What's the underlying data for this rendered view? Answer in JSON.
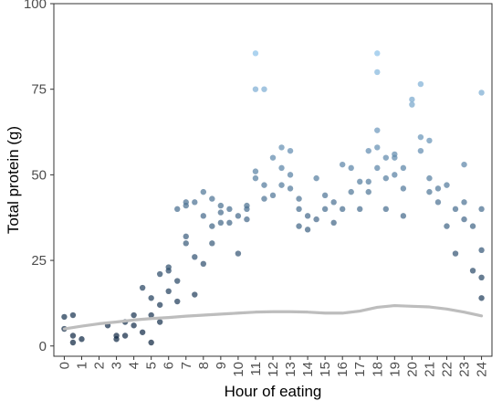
{
  "chart_data": {
    "type": "scatter",
    "title": "",
    "xlabel": "Hour of eating",
    "ylabel": "Total protein (g)",
    "xlim": [
      -0.6,
      24.6
    ],
    "ylim": [
      -3,
      100
    ],
    "x_ticks": [
      0,
      1,
      2,
      3,
      4,
      5,
      6,
      7,
      8,
      9,
      10,
      11,
      12,
      13,
      14,
      15,
      16,
      17,
      18,
      19,
      20,
      21,
      22,
      23,
      24
    ],
    "x_tick_labels": [
      "0",
      "1",
      "2",
      "3",
      "4",
      "5",
      "6",
      "7",
      "8",
      "9",
      "10",
      "11",
      "12",
      "13",
      "14",
      "15",
      "16",
      "17",
      "18",
      "19",
      "20",
      "21",
      "22",
      "23",
      "24"
    ],
    "y_ticks": [
      0,
      25,
      50,
      75,
      100
    ],
    "y_tick_labels": [
      "0",
      "25",
      "50",
      "75",
      "100"
    ],
    "grid": false,
    "point_color_scale": {
      "low": "#0e2641",
      "high": "#8fc3ea",
      "domain": [
        0,
        86
      ]
    },
    "trend_color": "#bdbdbd",
    "series": [
      {
        "points": [
          [
            0,
            8.5
          ],
          [
            0,
            5
          ],
          [
            0.5,
            9
          ],
          [
            0.5,
            3
          ],
          [
            0.5,
            1
          ],
          [
            1,
            2
          ],
          [
            2.5,
            6
          ],
          [
            3,
            3
          ],
          [
            3,
            2
          ],
          [
            3.5,
            7
          ],
          [
            3.5,
            3
          ],
          [
            4,
            9
          ],
          [
            4,
            6
          ],
          [
            4.5,
            17
          ],
          [
            4.5,
            4
          ],
          [
            5,
            1
          ],
          [
            5,
            14
          ],
          [
            5,
            9
          ],
          [
            5.5,
            21
          ],
          [
            5.5,
            7
          ],
          [
            5.5,
            12
          ],
          [
            6,
            22
          ],
          [
            6,
            16
          ],
          [
            6,
            23
          ],
          [
            6.5,
            40
          ],
          [
            6.5,
            19
          ],
          [
            6.5,
            13
          ],
          [
            7,
            41
          ],
          [
            7,
            42
          ],
          [
            7,
            32
          ],
          [
            7,
            30
          ],
          [
            7.5,
            42
          ],
          [
            7.5,
            26
          ],
          [
            7.5,
            15
          ],
          [
            8,
            45
          ],
          [
            8,
            38
          ],
          [
            8,
            24
          ],
          [
            8.5,
            43
          ],
          [
            8.5,
            35
          ],
          [
            8.5,
            30
          ],
          [
            9,
            41
          ],
          [
            9,
            36
          ],
          [
            9,
            39
          ],
          [
            9.5,
            36
          ],
          [
            9.5,
            40
          ],
          [
            10,
            38
          ],
          [
            10,
            27
          ],
          [
            10.5,
            40
          ],
          [
            10.5,
            37
          ],
          [
            10.5,
            41
          ],
          [
            11,
            85.5
          ],
          [
            11,
            75
          ],
          [
            11.5,
            75
          ],
          [
            11,
            51
          ],
          [
            11,
            49
          ],
          [
            11.5,
            43
          ],
          [
            11.5,
            47
          ],
          [
            12,
            44
          ],
          [
            12,
            55
          ],
          [
            12.5,
            58
          ],
          [
            12.5,
            52
          ],
          [
            12.5,
            47
          ],
          [
            13,
            57
          ],
          [
            13,
            50
          ],
          [
            13,
            46
          ],
          [
            13.5,
            43
          ],
          [
            13.5,
            40
          ],
          [
            13.5,
            35
          ],
          [
            14,
            38
          ],
          [
            14,
            34
          ],
          [
            14.5,
            49
          ],
          [
            14.5,
            37
          ],
          [
            15,
            44
          ],
          [
            15,
            40
          ],
          [
            15.5,
            42
          ],
          [
            15.5,
            36
          ],
          [
            16,
            53
          ],
          [
            16,
            40
          ],
          [
            16.5,
            52
          ],
          [
            16.5,
            45
          ],
          [
            17,
            48
          ],
          [
            17,
            40
          ],
          [
            17.5,
            57
          ],
          [
            17.5,
            48
          ],
          [
            17.5,
            45
          ],
          [
            18,
            85.5
          ],
          [
            18,
            80
          ],
          [
            18,
            63
          ],
          [
            18,
            58
          ],
          [
            18,
            52
          ],
          [
            18.5,
            55
          ],
          [
            18.5,
            49
          ],
          [
            18.5,
            40
          ],
          [
            19,
            56
          ],
          [
            19,
            55
          ],
          [
            19,
            50
          ],
          [
            19.5,
            52
          ],
          [
            19.5,
            46
          ],
          [
            19.5,
            38
          ],
          [
            20,
            72
          ],
          [
            20,
            70.5
          ],
          [
            20.5,
            76.5
          ],
          [
            20.5,
            61
          ],
          [
            20.5,
            57
          ],
          [
            21,
            60
          ],
          [
            21,
            49
          ],
          [
            21,
            45
          ],
          [
            21.5,
            46
          ],
          [
            21.5,
            42
          ],
          [
            22,
            47
          ],
          [
            22,
            35
          ],
          [
            22.5,
            40
          ],
          [
            22.5,
            27
          ],
          [
            23,
            53
          ],
          [
            23,
            42
          ],
          [
            23,
            37
          ],
          [
            23.5,
            35
          ],
          [
            23.5,
            22
          ],
          [
            24,
            74
          ],
          [
            24,
            40
          ],
          [
            24,
            28
          ],
          [
            24,
            20
          ],
          [
            24,
            14
          ]
        ]
      }
    ],
    "trend": {
      "x": [
        0,
        1,
        2,
        3,
        4,
        5,
        6,
        7,
        8,
        9,
        10,
        11,
        12,
        13,
        14,
        15,
        16,
        17,
        18,
        19,
        20,
        21,
        22,
        23,
        24
      ],
      "y": [
        5,
        5.8,
        6.5,
        7,
        7.6,
        8,
        8.3,
        8.7,
        9,
        9.3,
        9.6,
        9.9,
        10,
        10,
        9.9,
        9.6,
        9.6,
        10.2,
        11.3,
        11.8,
        11.6,
        11.4,
        10.8,
        9.9,
        8.8
      ]
    }
  }
}
